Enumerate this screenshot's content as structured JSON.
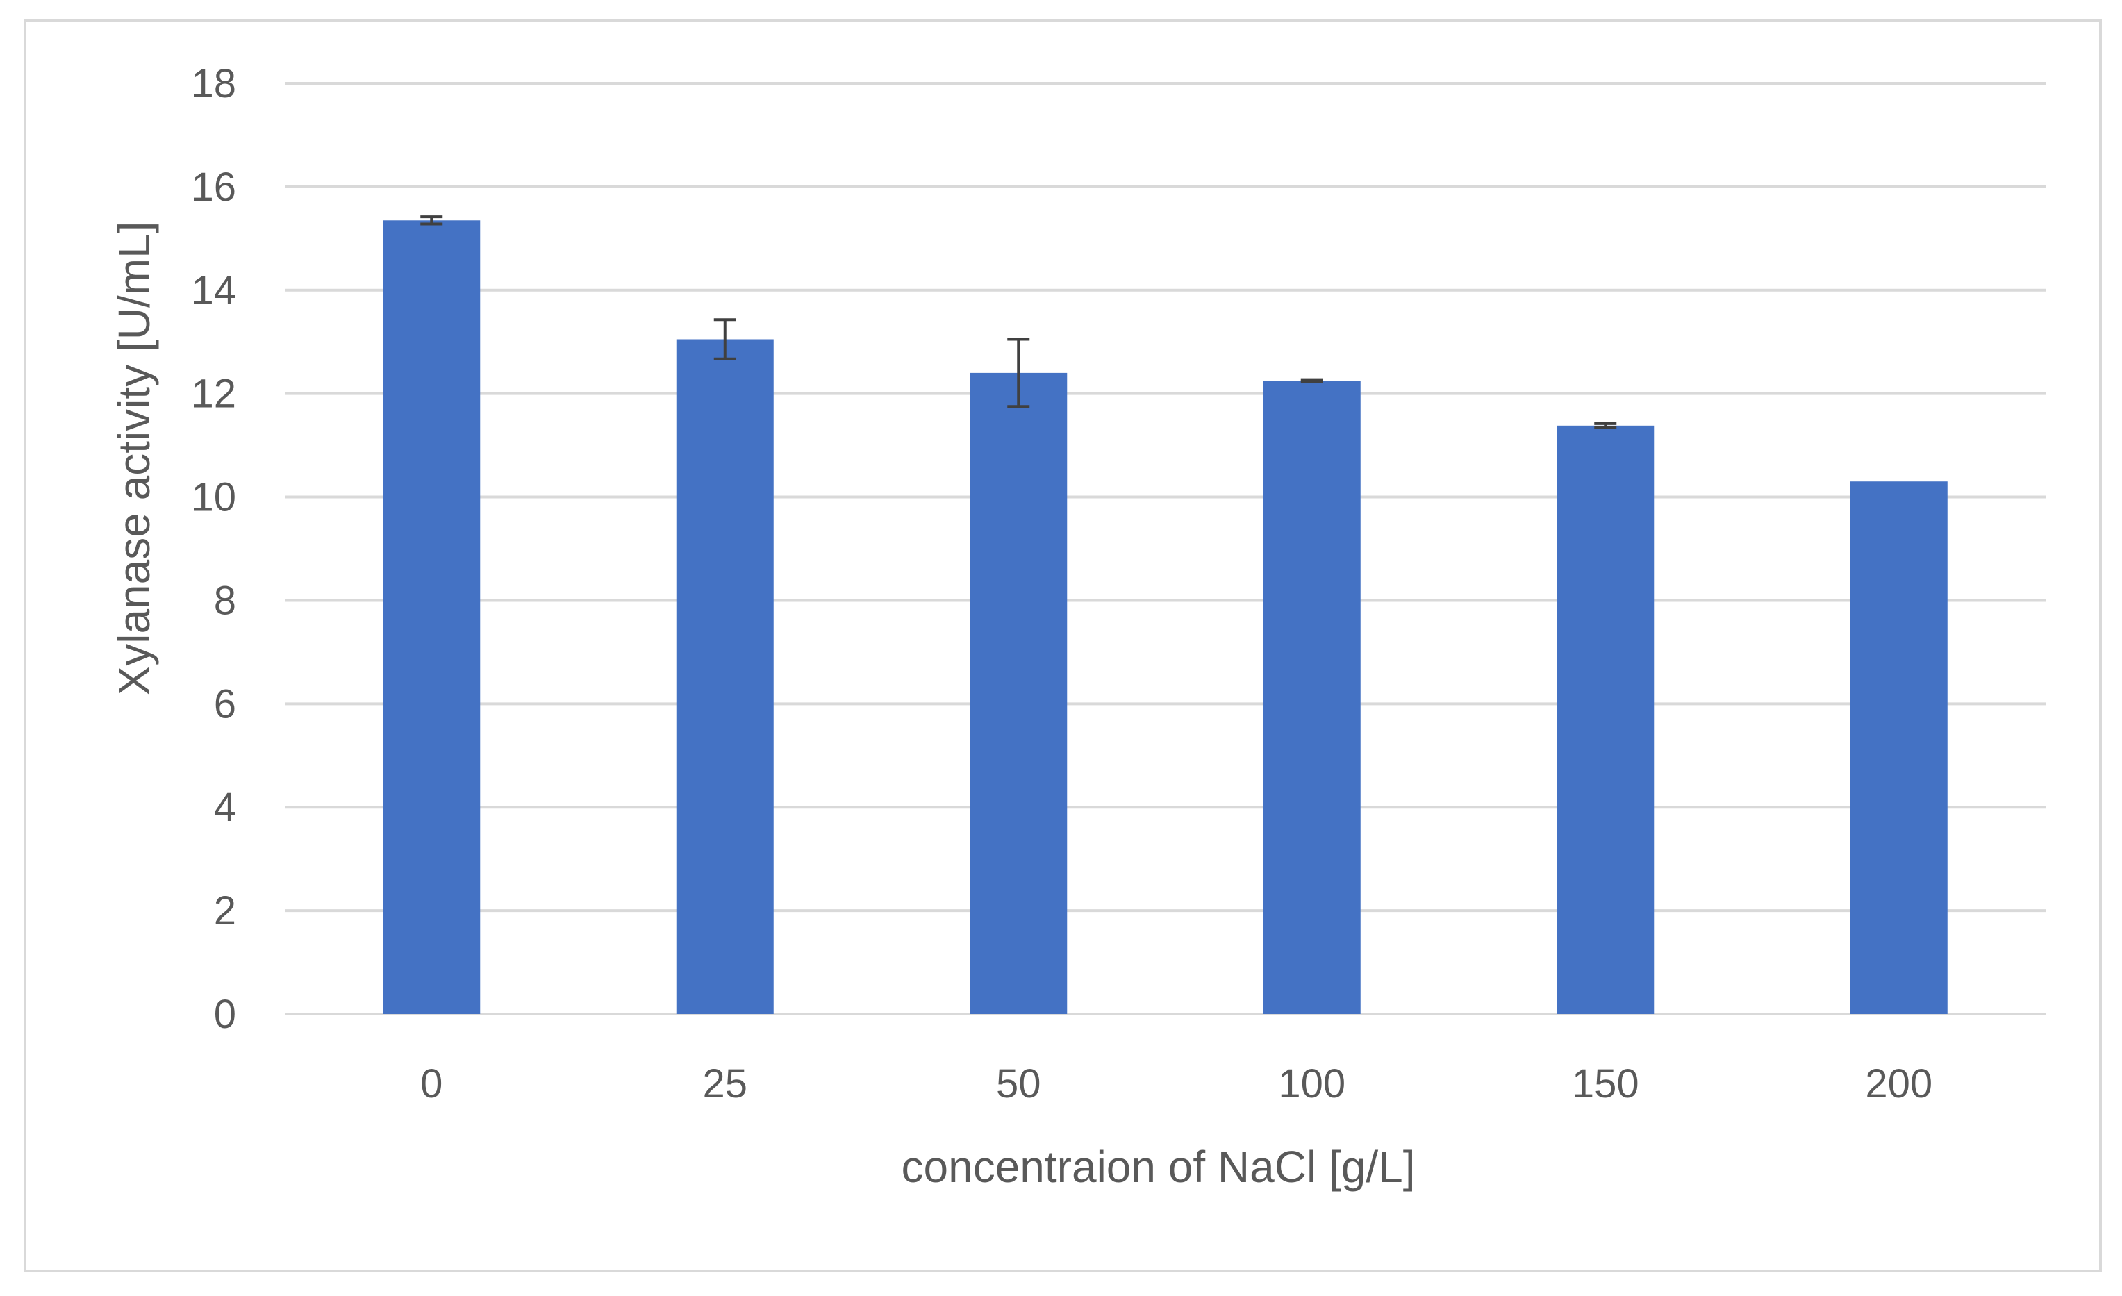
{
  "chart_data": {
    "type": "bar",
    "title": "",
    "xlabel": "concentraion of NaCl [g/L]",
    "ylabel": "Xylanase activity  [U/mL]",
    "categories": [
      "0",
      "25",
      "50",
      "100",
      "150",
      "200"
    ],
    "values": [
      15.35,
      13.05,
      12.4,
      12.25,
      11.38,
      10.3
    ],
    "error": [
      0.07,
      0.38,
      0.65,
      0.02,
      0.04,
      0
    ],
    "ylim": [
      0,
      18
    ],
    "yticks": [
      "0",
      "2",
      "4",
      "6",
      "8",
      "10",
      "12",
      "14",
      "16",
      "18"
    ],
    "grid": true,
    "bar_color": "#4472c4",
    "error_color": "#404040",
    "grid_color": "#d9d9d9"
  }
}
